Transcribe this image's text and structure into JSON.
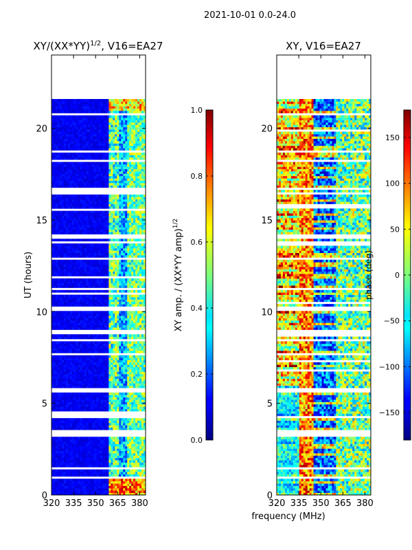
{
  "figure": {
    "suptitle": "2021-10-01 0.0-24.0",
    "xlabel_shared": "frequency (MHz)"
  },
  "chart_data": [
    {
      "type": "heatmap",
      "title": "XY/(XX*YY)",
      "title_sup": "1/2",
      "title_suffix": ", V16=EA27",
      "xlabel": "",
      "ylabel": "UT (hours)",
      "xlim": [
        320,
        384
      ],
      "ylim": [
        0,
        24
      ],
      "xticks": [
        "320",
        "335",
        "350",
        "365",
        "380"
      ],
      "xtick_values": [
        320,
        335,
        350,
        365,
        380
      ],
      "yticks": [
        "0",
        "5",
        "10",
        "15",
        "20"
      ],
      "ytick_values": [
        0,
        5,
        10,
        15,
        20
      ],
      "data_extent_hours": [
        0,
        21.6
      ],
      "colorbar": {
        "label": "XY amp. / (XX*YY amp)",
        "label_sup": "1/2",
        "range": [
          0,
          1
        ],
        "ticks": [
          "0.0",
          "0.2",
          "0.4",
          "0.6",
          "0.8",
          "1.0"
        ],
        "tick_values": [
          0,
          0.2,
          0.4,
          0.6,
          0.8,
          1.0
        ]
      }
    },
    {
      "type": "heatmap",
      "title": "XY, V16=EA27",
      "xlabel": "frequency (MHz)",
      "ylabel": "",
      "xlim": [
        320,
        384
      ],
      "ylim": [
        0,
        24
      ],
      "xticks": [
        "320",
        "335",
        "350",
        "365",
        "380"
      ],
      "xtick_values": [
        320,
        335,
        350,
        365,
        380
      ],
      "yticks": [
        "0",
        "5",
        "10",
        "15",
        "20"
      ],
      "ytick_values": [
        0,
        5,
        10,
        15,
        20
      ],
      "data_extent_hours": [
        0,
        21.6
      ],
      "colorbar": {
        "label": "phase (deg)",
        "range": [
          -180,
          180
        ],
        "ticks": [
          "150",
          "100",
          "50",
          "0",
          "−50",
          "−100",
          "−150"
        ],
        "tick_values": [
          150,
          100,
          50,
          0,
          -50,
          -100,
          -150
        ]
      }
    }
  ]
}
